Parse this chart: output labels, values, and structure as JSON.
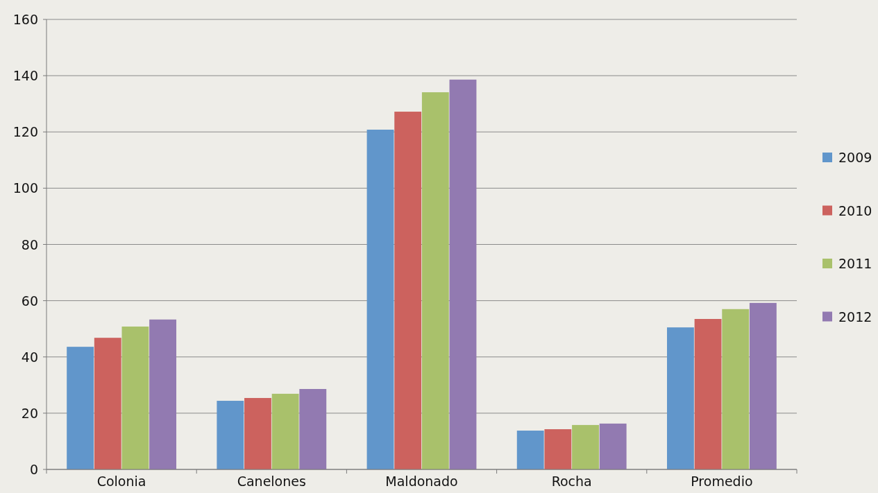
{
  "chart_data": {
    "type": "bar",
    "categories": [
      "Colonia",
      "Canelones",
      "Maldonado",
      "Rocha",
      "Promedio"
    ],
    "series": [
      {
        "name": "2009",
        "color": "#6196cb",
        "values": [
          43.6,
          24.4,
          120.8,
          13.8,
          50.5
        ]
      },
      {
        "name": "2010",
        "color": "#cc625e",
        "values": [
          46.8,
          25.4,
          127.2,
          14.3,
          53.5
        ]
      },
      {
        "name": "2011",
        "color": "#a9c16b",
        "values": [
          50.8,
          26.9,
          134.1,
          15.8,
          57.0
        ]
      },
      {
        "name": "2012",
        "color": "#927ab1",
        "values": [
          53.3,
          28.6,
          138.6,
          16.3,
          59.2
        ]
      }
    ],
    "ylim": [
      0,
      160
    ],
    "yticks": [
      0,
      20,
      40,
      60,
      80,
      100,
      120,
      140,
      160
    ],
    "grid": "y",
    "legend": "right"
  }
}
